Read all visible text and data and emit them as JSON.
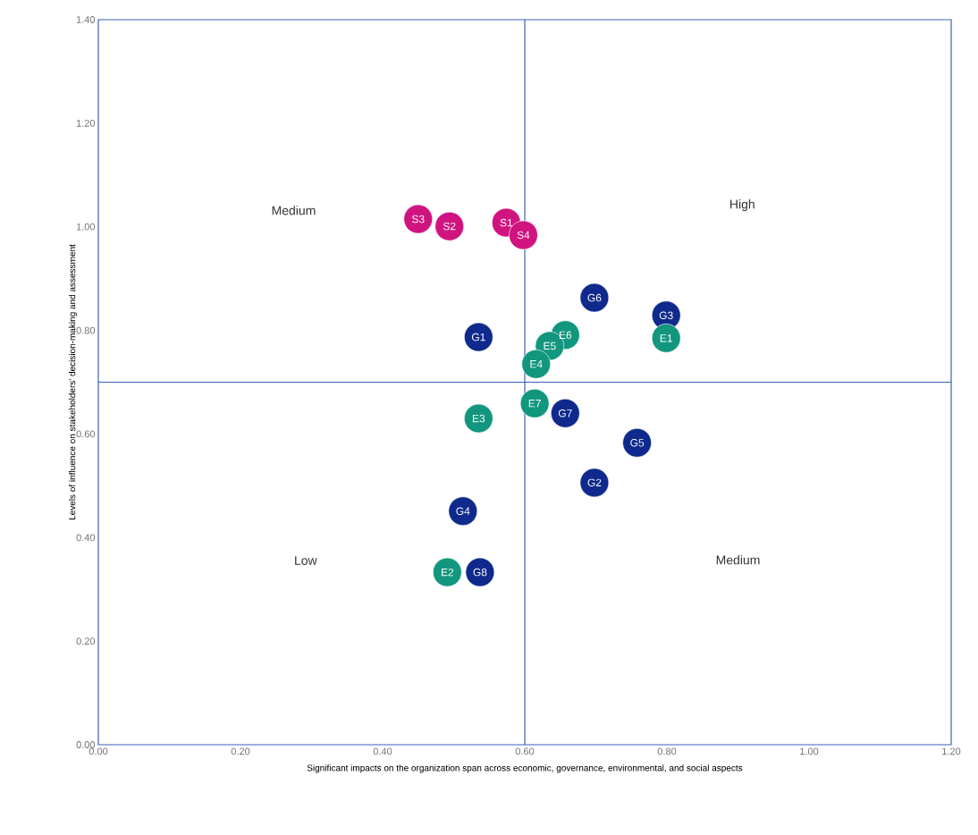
{
  "chart_data": {
    "type": "scatter",
    "marker": "circle",
    "xlabel": "Significant impacts on the organization span across economic, governance, environmental, and social aspects",
    "ylabel": "Levels of influence on stakeholders' decision-making and assessment",
    "xlim": [
      0,
      1.2
    ],
    "ylim": [
      0,
      1.4
    ],
    "xticks": [
      {
        "value": 0,
        "label": "0.00"
      },
      {
        "value": 0.2,
        "label": "0.20"
      },
      {
        "value": 0.4,
        "label": "0.40"
      },
      {
        "value": 0.6,
        "label": "0.60"
      },
      {
        "value": 0.8,
        "label": "0.80"
      },
      {
        "value": 1.0,
        "label": "1.00"
      },
      {
        "value": 1.2,
        "label": "1.20"
      }
    ],
    "yticks": [
      {
        "value": 0,
        "label": "0.00"
      },
      {
        "value": 0.2,
        "label": "0.20"
      },
      {
        "value": 0.4,
        "label": "0.40"
      },
      {
        "value": 0.6,
        "label": "0.60"
      },
      {
        "value": 0.8,
        "label": "0.80"
      },
      {
        "value": 1.0,
        "label": "1.00"
      },
      {
        "value": 1.2,
        "label": "1.20"
      },
      {
        "value": 1.4,
        "label": "1.40"
      }
    ],
    "ref_lines": [
      {
        "axis": "x",
        "value": 0.6,
        "color": "#3a62b8"
      },
      {
        "axis": "y",
        "value": 0.7,
        "color": "#3a62b8"
      }
    ],
    "series": [
      {
        "color": "#d0147f",
        "x": [
          0.45,
          0.494,
          0.574,
          0.598
        ],
        "values": [
          1.015,
          1.001,
          1.008,
          0.984
        ]
      },
      {
        "color": "#0f2a8c",
        "x": [
          0.698,
          0.799,
          0.535,
          0.657,
          0.758,
          0.698,
          0.513,
          0.537
        ],
        "values": [
          0.863,
          0.829,
          0.787,
          0.64,
          0.583,
          0.506,
          0.451,
          0.333
        ]
      },
      {
        "color": "#13967e",
        "x": [
          0.799,
          0.657,
          0.635,
          0.616,
          0.614,
          0.535,
          0.491
        ],
        "values": [
          0.785,
          0.791,
          0.77,
          0.735,
          0.659,
          0.63,
          0.333
        ]
      }
    ],
    "annotations": [
      "Medium",
      "High",
      "Low",
      "Medium",
      {
        "text": "S3",
        "x": 0.45,
        "y": 1.015
      },
      {
        "text": "S2",
        "x": 0.494,
        "y": 1.001
      },
      {
        "text": "S1",
        "x": 0.574,
        "y": 1.008
      },
      {
        "text": "S4",
        "x": 0.598,
        "y": 0.984
      },
      {
        "text": "G6",
        "x": 0.698,
        "y": 0.863
      },
      {
        "text": "G3",
        "x": 0.799,
        "y": 0.829
      },
      {
        "text": "G1",
        "x": 0.535,
        "y": 0.787
      },
      {
        "text": "G7",
        "x": 0.657,
        "y": 0.64
      },
      {
        "text": "G5",
        "x": 0.758,
        "y": 0.583
      },
      {
        "text": "G2",
        "x": 0.698,
        "y": 0.506
      },
      {
        "text": "G4",
        "x": 0.513,
        "y": 0.451
      },
      {
        "text": "G8",
        "x": 0.537,
        "y": 0.333
      },
      {
        "text": "E1",
        "x": 0.799,
        "y": 0.785
      },
      {
        "text": "E6",
        "x": 0.657,
        "y": 0.791
      },
      {
        "text": "E5",
        "x": 0.635,
        "y": 0.77
      },
      {
        "text": "E4",
        "x": 0.616,
        "y": 0.735
      },
      {
        "text": "E7",
        "x": 0.614,
        "y": 0.659
      },
      {
        "text": "E3",
        "x": 0.535,
        "y": 0.63
      },
      {
        "text": "E2",
        "x": 0.491,
        "y": 0.333
      }
    ]
  }
}
